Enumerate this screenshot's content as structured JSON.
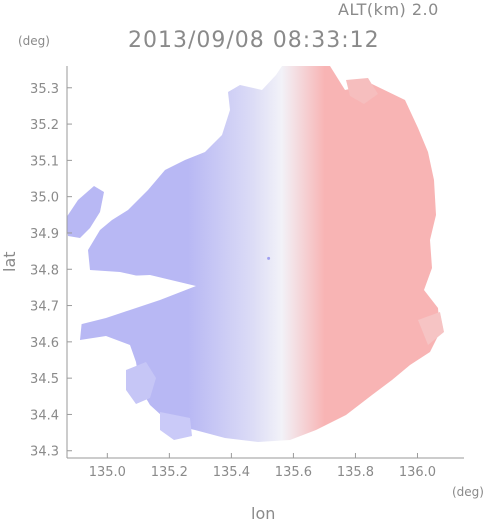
{
  "chart_data": {
    "type": "heatmap",
    "altitude_label": "ALT(km)  2.0",
    "title": "2013/09/08 08:33:12",
    "xlabel": "lon",
    "ylabel": "lat",
    "x_unit": "(deg)",
    "y_unit": "(deg)",
    "xlim": [
      134.87,
      136.15
    ],
    "ylim": [
      34.28,
      35.36
    ],
    "xticks": [
      "135.0",
      "135.2",
      "135.4",
      "135.6",
      "135.8",
      "136.0"
    ],
    "yticks": [
      "34.3",
      "34.4",
      "34.5",
      "34.6",
      "34.7",
      "34.8",
      "34.9",
      "35.0",
      "35.1",
      "35.2",
      "35.3"
    ],
    "radar_center": [
      135.52,
      34.83
    ],
    "colors": {
      "approaching": "#b8b8f4",
      "neutral": "#f2f2f8",
      "receding": "#f8b4b4",
      "axis": "#9a9a9a"
    }
  }
}
